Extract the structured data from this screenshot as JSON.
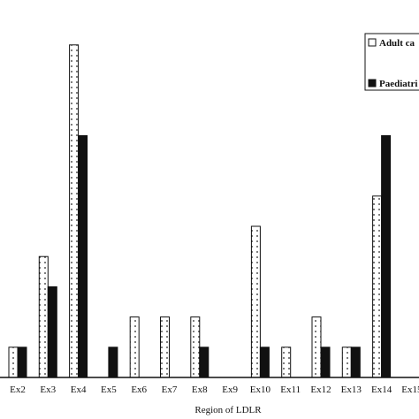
{
  "chart_data": {
    "type": "bar",
    "xlabel": "Region of LDLR",
    "ylabel": "",
    "categories": [
      "Ex2",
      "Ex3",
      "Ex4",
      "Ex5",
      "Ex6",
      "Ex7",
      "Ex8",
      "Ex9",
      "Ex10",
      "Ex11",
      "Ex12",
      "Ex13",
      "Ex14",
      "Ex15"
    ],
    "series": [
      {
        "name": "Adult ca",
        "style": "dotted",
        "color": "#ffffff",
        "values": [
          1,
          4,
          11,
          0,
          2,
          2,
          2,
          0,
          5,
          1,
          2,
          1,
          6,
          0
        ]
      },
      {
        "name": "Paediatri",
        "style": "solid",
        "color": "#111111",
        "values": [
          1,
          3,
          8,
          1,
          0,
          0,
          1,
          0,
          1,
          0,
          1,
          1,
          8,
          0
        ]
      }
    ],
    "ylim": [
      0,
      11
    ],
    "grid": false,
    "legend": "top-right"
  }
}
